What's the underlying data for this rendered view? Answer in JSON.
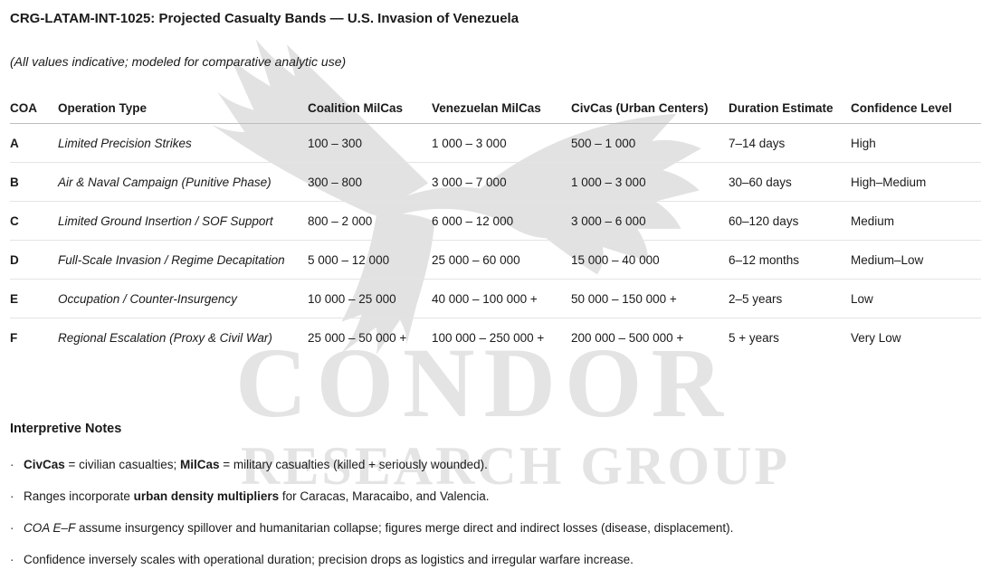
{
  "document": {
    "title": "CRG-LATAM-INT-1025: Projected Casualty Bands — U.S. Invasion of Venezuela",
    "subtitle": "(All values indicative; modeled for comparative analytic use)"
  },
  "table": {
    "columns": [
      "COA",
      "Operation Type",
      "Coalition MilCas",
      "Venezuelan MilCas",
      "CivCas (Urban Centers)",
      "Duration Estimate",
      "Confidence Level"
    ],
    "rows": [
      {
        "coa": "A",
        "operation": "Limited Precision Strikes",
        "coalition": "100 – 300",
        "venezuelan": "1 000 – 3 000",
        "civcas": "500 – 1 000",
        "duration": "7–14 days",
        "confidence": "High"
      },
      {
        "coa": "B",
        "operation": "Air & Naval Campaign (Punitive Phase)",
        "coalition": "300 – 800",
        "venezuelan": "3 000 – 7 000",
        "civcas": "1 000 – 3 000",
        "duration": "30–60 days",
        "confidence": "High–Medium"
      },
      {
        "coa": "C",
        "operation": "Limited Ground Insertion / SOF Support",
        "coalition": "800 – 2 000",
        "venezuelan": "6 000 – 12 000",
        "civcas": "3 000 – 6 000",
        "duration": "60–120 days",
        "confidence": "Medium"
      },
      {
        "coa": "D",
        "operation": "Full-Scale Invasion / Regime Decapitation",
        "coalition": "5 000 – 12 000",
        "venezuelan": "25 000 – 60 000",
        "civcas": "15 000 – 40 000",
        "duration": "6–12 months",
        "confidence": "Medium–Low"
      },
      {
        "coa": "E",
        "operation": "Occupation / Counter-Insurgency",
        "coalition": "10 000 – 25 000",
        "venezuelan": "40 000 – 100 000 +",
        "civcas": "50 000 – 150 000 +",
        "duration": "2–5 years",
        "confidence": "Low"
      },
      {
        "coa": "F",
        "operation": "Regional Escalation (Proxy & Civil War)",
        "coalition": "25 000 – 50 000 +",
        "venezuelan": "100 000 – 250 000 +",
        "civcas": "200 000 – 500 000 +",
        "duration": "5 + years",
        "confidence": "Very Low"
      }
    ]
  },
  "notes": {
    "heading": "Interpretive Notes",
    "bullet": "·",
    "items": [
      [
        {
          "t": "CivCas",
          "b": true
        },
        {
          "t": " = civilian casualties; "
        },
        {
          "t": "MilCas",
          "b": true
        },
        {
          "t": " = military casualties (killed + seriously wounded)."
        }
      ],
      [
        {
          "t": "Ranges incorporate "
        },
        {
          "t": "urban density multipliers",
          "b": true
        },
        {
          "t": " for Caracas, Maracaibo, and Valencia."
        }
      ],
      [
        {
          "t": "COA E–F",
          "i": true
        },
        {
          "t": " assume insurgency spillover and humanitarian collapse; figures merge direct and indirect losses (disease, displacement)."
        }
      ],
      [
        {
          "t": "Confidence inversely scales with operational duration; precision drops as logistics and irregular warfare increase."
        }
      ]
    ]
  },
  "watermark": {
    "line1": "CONDOR",
    "line2": "RESEARCH GROUP",
    "icon": "condor-eagle-icon",
    "color": "#e2e2e2"
  }
}
